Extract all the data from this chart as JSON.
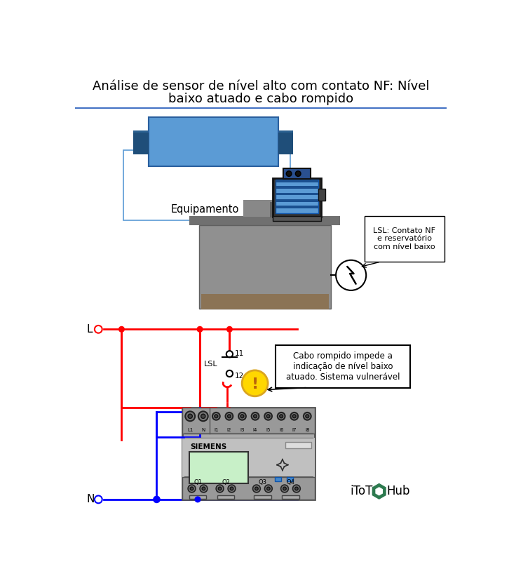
{
  "title_line1": "Análise de sensor de nível alto com contato NF: Nível",
  "title_line2": "baixo atuado e cabo rompido",
  "title_fontsize": 13,
  "bg_color": "#ffffff",
  "divider_color": "#4472c4",
  "equip_label": "Equipamento",
  "lsl_callout": "LSL: Contato NF\ne reservatório\ncom nível baixo",
  "cable_callout": "Cabo rompido impede a\nindicação de nível baixo\natuado. Sistema vulnerável",
  "L_label": "L",
  "N_label": "N",
  "LSL_label": "LSL",
  "t11": "11",
  "t12": "12",
  "siemens": "SIEMENS",
  "q_labels": [
    "Q1",
    "Q2",
    "Q3",
    "Q4"
  ],
  "i_labels": [
    "L1",
    "N",
    "I1",
    "I2",
    "I3",
    "I4",
    "I5",
    "I6",
    "I7",
    "I8"
  ],
  "itot": "iToT",
  "hub": "Hub",
  "motor_blue": "#5b9bd5",
  "motor_dark": "#1f4e79",
  "motor_black": "#1a1a2e",
  "tank_gray": "#909090",
  "tank_top": "#707070",
  "grease_color": "#8B7355",
  "plc_body": "#aaaaaa",
  "plc_term": "#999999",
  "plc_mid": "#bbbbbb",
  "screen_green": "#c8f0c8",
  "red": "#ff0000",
  "blue": "#0000ff",
  "warn_yellow": "#FFD700",
  "warn_border": "#DAA520",
  "green_hex": "#2d7a4f"
}
